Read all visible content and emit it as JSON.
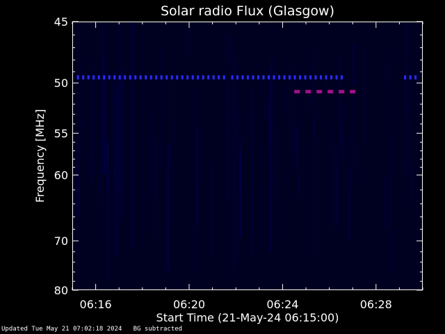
{
  "chart_data": {
    "type": "heatmap",
    "title": "Solar radio Flux (Glasgow)",
    "xlabel": "Start Time (21-May-24 06:15:00)",
    "ylabel": "Frequency [MHz]",
    "x_ticks_minutes": [
      1,
      5,
      9,
      13
    ],
    "x_tick_labels": [
      "06:16",
      "06:20",
      "06:24",
      "06:28"
    ],
    "x_range_minutes": [
      0,
      15
    ],
    "y_ticks": [
      45,
      50,
      55,
      60,
      70,
      80
    ],
    "y_range": [
      45,
      80
    ],
    "y_scale": "reciprocal",
    "background_color": "#000020",
    "features": [
      {
        "name": "blue-band-1",
        "freq_mhz": 49.5,
        "start_min": 0.2,
        "end_min": 6.6,
        "color": "#2a2aff"
      },
      {
        "name": "blue-band-2",
        "freq_mhz": 49.5,
        "start_min": 6.8,
        "end_min": 11.7,
        "color": "#2a2aff"
      },
      {
        "name": "blue-band-3",
        "freq_mhz": 49.5,
        "start_min": 14.2,
        "end_min": 14.9,
        "color": "#2a2aff"
      },
      {
        "name": "magenta-band",
        "freq_mhz": 50.8,
        "start_min": 9.5,
        "end_min": 12.2,
        "color": "#a0108a"
      }
    ]
  },
  "footer": {
    "updated": "Updated Tue May 21 07:02:18 2024",
    "note": "BG subtracted"
  }
}
